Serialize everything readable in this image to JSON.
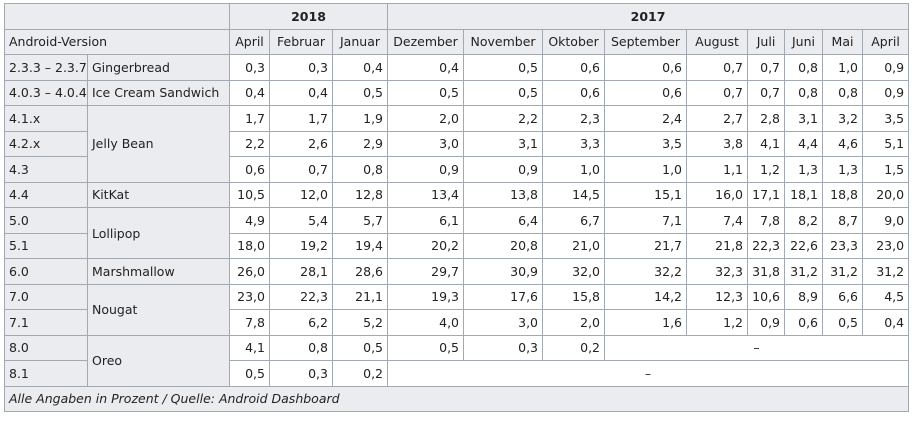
{
  "table": {
    "years": [
      "2018",
      "2017"
    ],
    "version_header": "Android-Version",
    "months": [
      "April",
      "Februar",
      "Januar",
      "Dezember",
      "November",
      "Oktober",
      "September",
      "August",
      "Juli",
      "Juni",
      "Mai",
      "April"
    ],
    "groups": [
      {
        "name": "Gingerbread",
        "rows": [
          {
            "version": "2.3.3 – 2.3.7",
            "values": [
              "0,3",
              "0,3",
              "0,4",
              "0,4",
              "0,5",
              "0,6",
              "0,6",
              "0,7",
              "0,7",
              "0,8",
              "1,0",
              "0,9"
            ]
          }
        ]
      },
      {
        "name": "Ice Cream Sandwich",
        "rows": [
          {
            "version": "4.0.3 – 4.0.4",
            "values": [
              "0,4",
              "0,4",
              "0,5",
              "0,5",
              "0,5",
              "0,6",
              "0,6",
              "0,7",
              "0,7",
              "0,8",
              "0,8",
              "0,9"
            ]
          }
        ]
      },
      {
        "name": "Jelly Bean",
        "rows": [
          {
            "version": "4.1.x",
            "values": [
              "1,7",
              "1,7",
              "1,9",
              "2,0",
              "2,2",
              "2,3",
              "2,4",
              "2,7",
              "2,8",
              "3,1",
              "3,2",
              "3,5"
            ]
          },
          {
            "version": "4.2.x",
            "values": [
              "2,2",
              "2,6",
              "2,9",
              "3,0",
              "3,1",
              "3,3",
              "3,5",
              "3,8",
              "4,1",
              "4,4",
              "4,6",
              "5,1"
            ]
          },
          {
            "version": "4.3",
            "values": [
              "0,6",
              "0,7",
              "0,8",
              "0,9",
              "0,9",
              "1,0",
              "1,0",
              "1,1",
              "1,2",
              "1,3",
              "1,3",
              "1,5"
            ]
          }
        ]
      },
      {
        "name": "KitKat",
        "rows": [
          {
            "version": "4.4",
            "values": [
              "10,5",
              "12,0",
              "12,8",
              "13,4",
              "13,8",
              "14,5",
              "15,1",
              "16,0",
              "17,1",
              "18,1",
              "18,8",
              "20,0"
            ]
          }
        ]
      },
      {
        "name": "Lollipop",
        "rows": [
          {
            "version": "5.0",
            "values": [
              "4,9",
              "5,4",
              "5,7",
              "6,1",
              "6,4",
              "6,7",
              "7,1",
              "7,4",
              "7,8",
              "8,2",
              "8,7",
              "9,0"
            ]
          },
          {
            "version": "5.1",
            "values": [
              "18,0",
              "19,2",
              "19,4",
              "20,2",
              "20,8",
              "21,0",
              "21,7",
              "21,8",
              "22,3",
              "22,6",
              "23,3",
              "23,0"
            ]
          }
        ]
      },
      {
        "name": "Marshmallow",
        "rows": [
          {
            "version": "6.0",
            "values": [
              "26,0",
              "28,1",
              "28,6",
              "29,7",
              "30,9",
              "32,0",
              "32,2",
              "32,3",
              "31,8",
              "31,2",
              "31,2",
              "31,2"
            ]
          }
        ]
      },
      {
        "name": "Nougat",
        "rows": [
          {
            "version": "7.0",
            "values": [
              "23,0",
              "22,3",
              "21,1",
              "19,3",
              "17,6",
              "15,8",
              "14,2",
              "12,3",
              "10,6",
              "8,9",
              "6,6",
              "4,5"
            ]
          },
          {
            "version": "7.1",
            "values": [
              "7,8",
              "6,2",
              "5,2",
              "4,0",
              "3,0",
              "2,0",
              "1,6",
              "1,2",
              "0,9",
              "0,6",
              "0,5",
              "0,4"
            ]
          }
        ]
      },
      {
        "name": "Oreo",
        "rows": [
          {
            "version": "8.0",
            "values": [
              "4,1",
              "0,8",
              "0,5",
              "0,5",
              "0,3",
              "0,2",
              "–"
            ]
          },
          {
            "version": "8.1",
            "values": [
              "0,5",
              "0,3",
              "0,2",
              "–"
            ]
          }
        ]
      }
    ],
    "footer": "Alle Angaben in Prozent / Quelle: Android Dashboard"
  }
}
